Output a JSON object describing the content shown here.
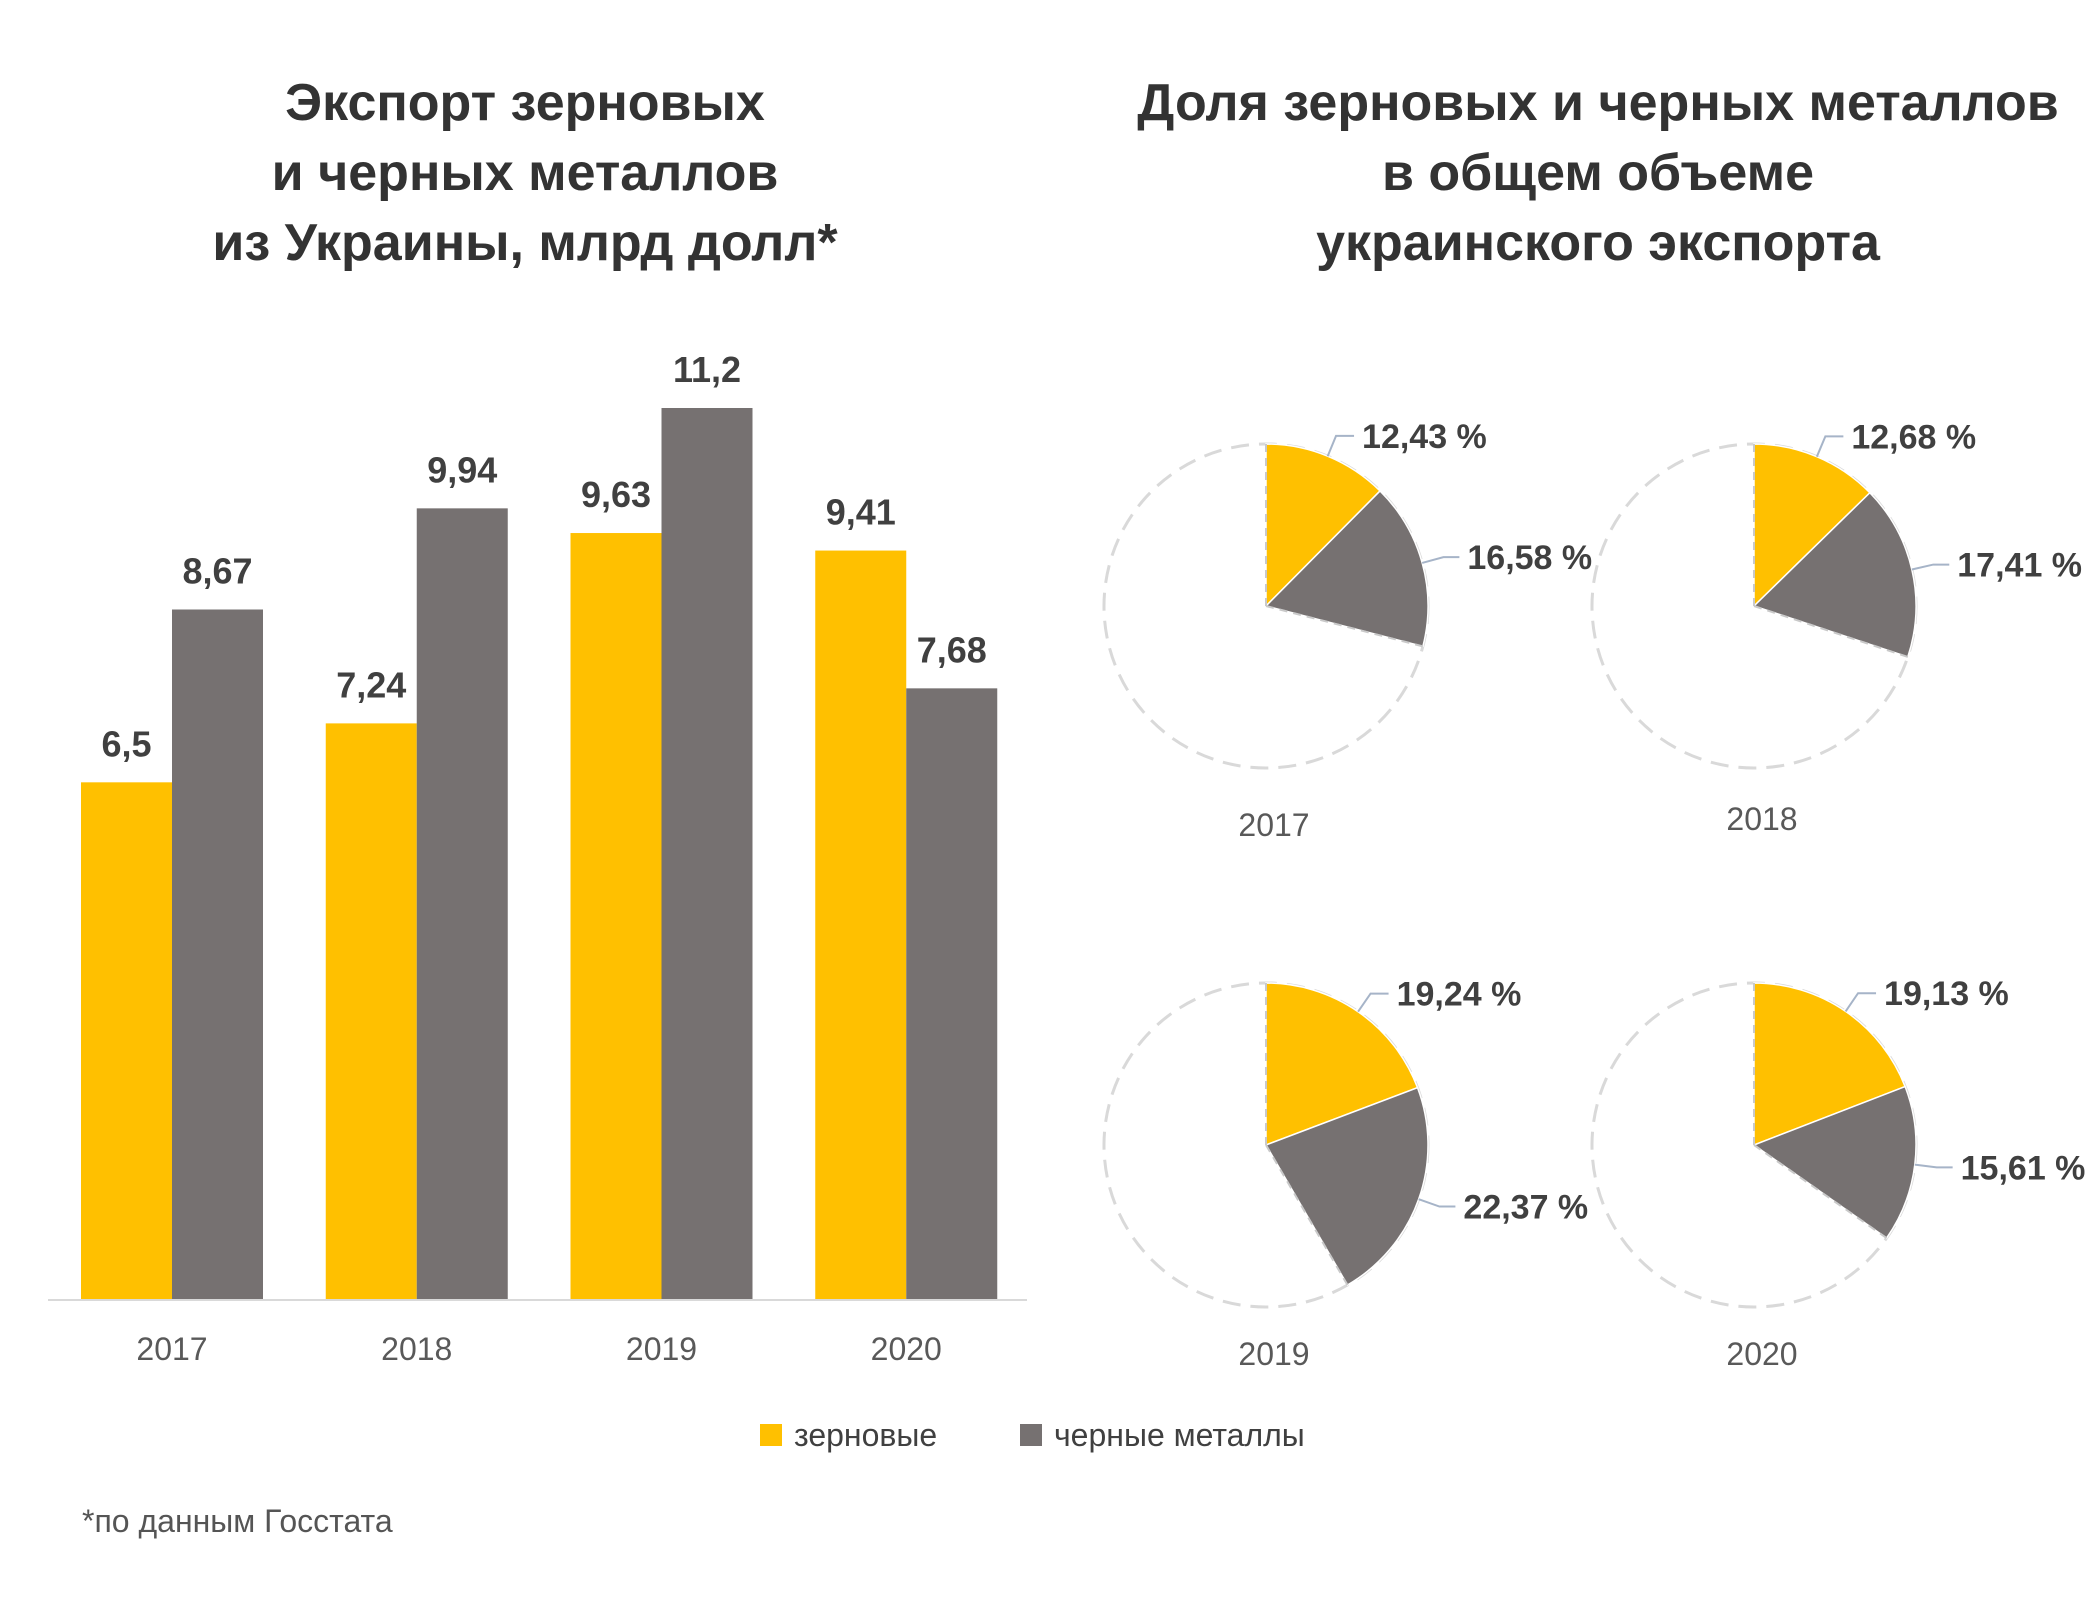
{
  "chart_data": [
    {
      "type": "bar",
      "title": "Экспорт зерновых\nи черных металлов\nиз Украины, млрд долл*",
      "categories": [
        "2017",
        "2018",
        "2019",
        "2020"
      ],
      "series": [
        {
          "name": "зерновые",
          "color": "#FFC000",
          "values": [
            6.5,
            7.24,
            9.63,
            9.41
          ],
          "labels": [
            "6,5",
            "7,24",
            "9,63",
            "9,41"
          ]
        },
        {
          "name": "черные металлы",
          "color": "#767171",
          "values": [
            8.67,
            9.94,
            11.2,
            7.68
          ],
          "labels": [
            "8,67",
            "9,94",
            "11,2",
            "7,68"
          ]
        }
      ],
      "ylim": [
        0,
        11.2
      ],
      "legend": "bottom",
      "grid": false
    },
    {
      "type": "pie",
      "title": "Доля зерновых и черных металлов\nв общем объеме\nукраинского экспорта",
      "charts": [
        {
          "year": "2017",
          "slices": [
            {
              "name": "зерновые",
              "value": 12.43,
              "label": "12,43 %"
            },
            {
              "name": "черные металлы",
              "value": 16.58,
              "label": "16,58 %"
            }
          ]
        },
        {
          "year": "2018",
          "slices": [
            {
              "name": "зерновые",
              "value": 12.68,
              "label": "12,68 %"
            },
            {
              "name": "черные металлы",
              "value": 17.41,
              "label": "17,41 %"
            }
          ]
        },
        {
          "year": "2019",
          "slices": [
            {
              "name": "зерновые",
              "value": 19.24,
              "label": "19,24 %"
            },
            {
              "name": "черные металлы",
              "value": 22.37,
              "label": "22,37 %"
            }
          ]
        },
        {
          "year": "2020",
          "slices": [
            {
              "name": "зерновые",
              "value": 19.13,
              "label": "19,13 %"
            },
            {
              "name": "черные металлы",
              "value": 15.61,
              "label": "15,61 %"
            }
          ]
        }
      ],
      "colors": {
        "зерновые": "#FFC000",
        "черные металлы": "#767171",
        "rest_outline": "#D9D9D9"
      }
    }
  ],
  "legend": {
    "items": [
      {
        "label": "зерновые",
        "color": "#FFC000"
      },
      {
        "label": "черные металлы",
        "color": "#767171"
      }
    ]
  },
  "footnote": "*по данным Госстата"
}
